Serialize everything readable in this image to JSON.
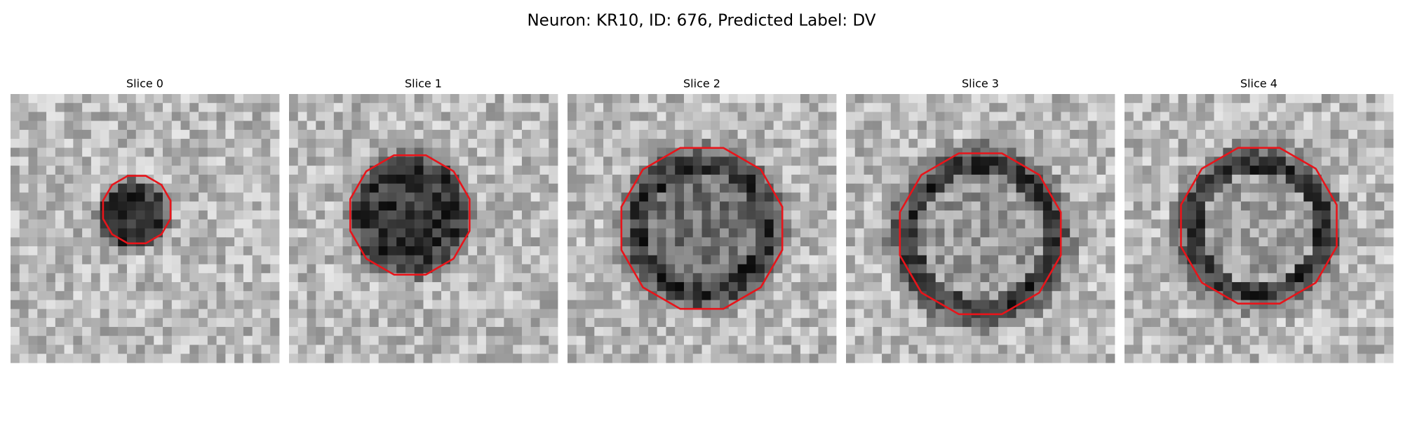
{
  "header": {
    "title": "Neuron: KR10, ID: 676, Predicted Label: DV"
  },
  "panels": [
    {
      "title": "Slice 0"
    },
    {
      "title": "Slice 1"
    },
    {
      "title": "Slice 2"
    },
    {
      "title": "Slice 3"
    },
    {
      "title": "Slice 4"
    }
  ]
}
